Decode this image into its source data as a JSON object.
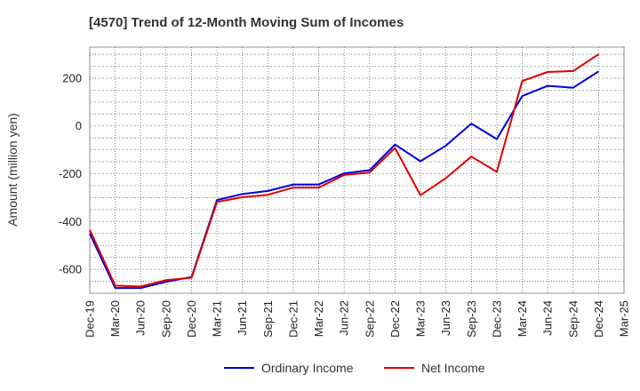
{
  "chart_data": {
    "type": "line",
    "title": "[4570]  Trend of 12-Month Moving Sum of Incomes",
    "xlabel": "",
    "ylabel": "Amount (million yen)",
    "ylim": [
      -700,
      330
    ],
    "yticks": [
      -600,
      -400,
      -200,
      0,
      200
    ],
    "grid": true,
    "legend_position": "bottom",
    "x": [
      "Dec-19",
      "Mar-20",
      "Jun-20",
      "Sep-20",
      "Dec-20",
      "Mar-21",
      "Jun-21",
      "Sep-21",
      "Dec-21",
      "Mar-22",
      "Jun-22",
      "Sep-22",
      "Dec-22",
      "Mar-23",
      "Jun-23",
      "Sep-23",
      "Dec-23",
      "Mar-24",
      "Jun-24",
      "Sep-24",
      "Dec-24",
      "Mar-25"
    ],
    "series": [
      {
        "name": "Ordinary Income",
        "color": "#0000dd",
        "values": [
          -450,
          -678,
          -678,
          -652,
          -632,
          -310,
          -285,
          -272,
          -245,
          -245,
          -198,
          -185,
          -78,
          -148,
          -82,
          10,
          -55,
          125,
          168,
          160,
          228,
          null
        ]
      },
      {
        "name": "Net Income",
        "color": "#dd0000",
        "values": [
          -435,
          -668,
          -672,
          -645,
          -635,
          -318,
          -298,
          -288,
          -258,
          -258,
          -205,
          -195,
          -92,
          -290,
          -218,
          -128,
          -192,
          188,
          226,
          230,
          300,
          null
        ]
      }
    ]
  }
}
